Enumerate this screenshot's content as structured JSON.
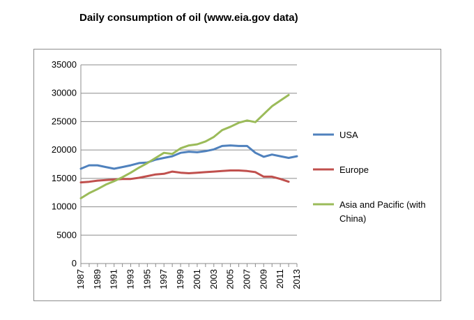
{
  "chart_data": {
    "type": "line",
    "title": "Daily consumption of oil (www.eia.gov data)",
    "xlabel": "",
    "ylabel": "",
    "x": [
      1987,
      1988,
      1989,
      1990,
      1991,
      1992,
      1993,
      1994,
      1995,
      1996,
      1997,
      1998,
      1999,
      2000,
      2001,
      2002,
      2003,
      2004,
      2005,
      2006,
      2007,
      2008,
      2009,
      2010,
      2011,
      2012,
      2013
    ],
    "x_tick_labels": [
      "1987",
      "1989",
      "1991",
      "1993",
      "1995",
      "1997",
      "1999",
      "2001",
      "2003",
      "2005",
      "2007",
      "2009",
      "2011",
      "2013"
    ],
    "ylim": [
      0,
      35000
    ],
    "y_ticks": [
      "0",
      "5000",
      "10000",
      "15000",
      "20000",
      "25000",
      "30000",
      "35000"
    ],
    "grid": true,
    "legend_position": "right",
    "series": [
      {
        "name": "USA",
        "color": "#4f81bd",
        "values": [
          16700,
          17300,
          17300,
          17000,
          16700,
          17000,
          17300,
          17700,
          17800,
          18300,
          18600,
          18900,
          19500,
          19700,
          19600,
          19800,
          20100,
          20700,
          20800,
          20700,
          20700,
          19500,
          18800,
          19200,
          18900,
          18600,
          18900
        ]
      },
      {
        "name": "Europe",
        "color": "#c0504d",
        "values": [
          14300,
          14400,
          14600,
          14700,
          14800,
          14900,
          14900,
          15100,
          15400,
          15700,
          15800,
          16200,
          16000,
          15900,
          16000,
          16100,
          16200,
          16300,
          16400,
          16400,
          16300,
          16100,
          15300,
          15300,
          14900,
          14400,
          null
        ]
      },
      {
        "name": "Asia and Pacific (with China)",
        "color": "#9bbb59",
        "values": [
          11500,
          12400,
          13100,
          13900,
          14500,
          15200,
          16000,
          16900,
          17700,
          18600,
          19500,
          19300,
          20300,
          20800,
          21000,
          21500,
          22300,
          23500,
          24100,
          24800,
          25200,
          24900,
          26300,
          27700,
          28700,
          29700,
          null
        ]
      }
    ]
  }
}
